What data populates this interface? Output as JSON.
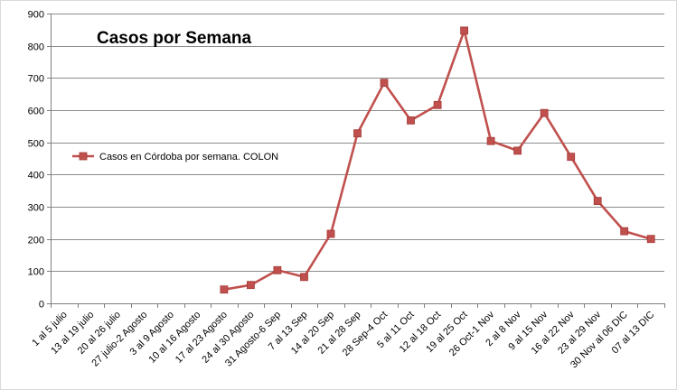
{
  "chart_data": {
    "type": "line",
    "title": "Casos por Semana",
    "xlabel": "",
    "ylabel": "",
    "ylim": [
      0,
      900
    ],
    "yticks": [
      0,
      100,
      200,
      300,
      400,
      500,
      600,
      700,
      800,
      900
    ],
    "grid": true,
    "legend_position": "left",
    "categories": [
      "1 al 5 julio",
      "13 al 19 julio",
      "20 al 26 julio",
      "27 julio-2 Agosto",
      "3 al 9 Agosto",
      "10 al 16 Agosto",
      "17 al 23 Agosto",
      "24 al 30 Agosto",
      "31 Agosto-6 Sep",
      "7 al 13 Sep",
      "14 al 20 Sep",
      "21 al 28 Sep",
      "28 Sep-4 Oct",
      "5 al 11 Oct",
      "12 al 18 Oct",
      "19 al 25 Oct",
      "26 Oct-1 Nov",
      "2 al 8 Nov",
      "9 al 15 Nov",
      "16 al 22 Nov",
      "23 al 29 Nov",
      "30 Nov al 06 DIC",
      "07 al 13 DIC"
    ],
    "series": [
      {
        "name": "Casos en Córdoba por semana. COLON",
        "color": "#c0504d",
        "values": [
          null,
          null,
          null,
          null,
          null,
          null,
          43,
          57,
          103,
          82,
          216,
          528,
          685,
          568,
          616,
          847,
          504,
          474,
          591,
          455,
          318,
          224,
          200
        ]
      }
    ]
  }
}
